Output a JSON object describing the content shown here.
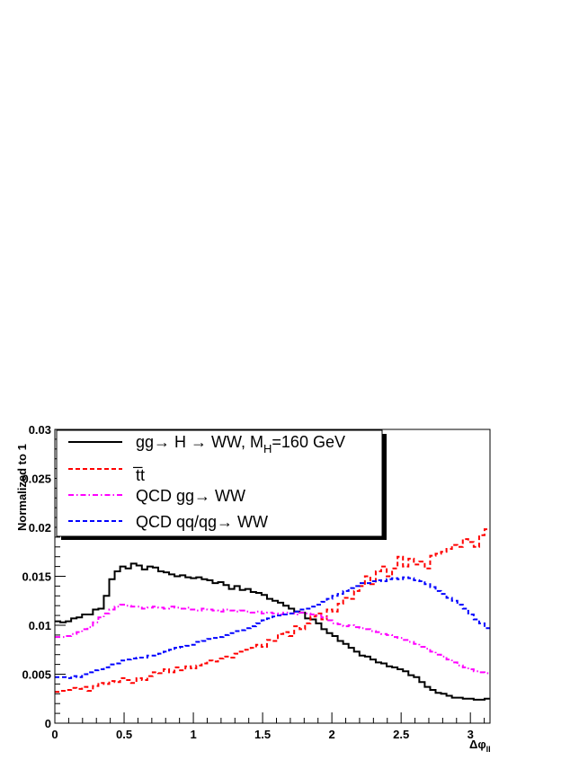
{
  "chart_data": {
    "type": "line",
    "title": "",
    "xlabel": "Δφ",
    "xlabel_subscript": "ll",
    "ylabel": "Normalized to 1",
    "xlim": [
      0,
      3.1416
    ],
    "ylim": [
      0,
      0.03
    ],
    "x_ticks": [
      "0",
      "0.5",
      "1",
      "1.5",
      "2",
      "2.5",
      "3"
    ],
    "y_ticks": [
      "0",
      "0.005",
      "0.01",
      "0.015",
      "0.02",
      "0.025",
      "0.03"
    ],
    "grid": false,
    "legend_position": "top-left",
    "series": [
      {
        "name": "gg→ H → WW, M_H=160 GeV",
        "color": "#000000",
        "dash": "solid",
        "y": [
          0.0104,
          0.0103,
          0.0104,
          0.0107,
          0.0108,
          0.0111,
          0.0111,
          0.0116,
          0.0117,
          0.013,
          0.0147,
          0.0155,
          0.016,
          0.0158,
          0.0163,
          0.0161,
          0.0157,
          0.016,
          0.0159,
          0.0155,
          0.0154,
          0.0152,
          0.015,
          0.0151,
          0.0149,
          0.0148,
          0.0149,
          0.0147,
          0.0146,
          0.0143,
          0.0144,
          0.0141,
          0.0137,
          0.014,
          0.0136,
          0.0137,
          0.0134,
          0.0133,
          0.0131,
          0.0127,
          0.0125,
          0.0123,
          0.012,
          0.0117,
          0.0114,
          0.0113,
          0.0107,
          0.0106,
          0.0102,
          0.0096,
          0.0092,
          0.0089,
          0.0084,
          0.0081,
          0.0077,
          0.0073,
          0.0069,
          0.0068,
          0.0065,
          0.0062,
          0.0061,
          0.0058,
          0.0057,
          0.0055,
          0.0053,
          0.0049,
          0.0047,
          0.0042,
          0.0037,
          0.0034,
          0.0031,
          0.003,
          0.0028,
          0.0026,
          0.0026,
          0.0025,
          0.0025,
          0.0024,
          0.0024,
          0.0025
        ]
      },
      {
        "name": "t̅t",
        "color": "#ff0000",
        "dash": "dashed",
        "y": [
          0.0032,
          0.0033,
          0.0034,
          0.0036,
          0.0035,
          0.0037,
          0.0033,
          0.0038,
          0.0041,
          0.004,
          0.0043,
          0.0042,
          0.0046,
          0.0044,
          0.0041,
          0.0046,
          0.0044,
          0.0048,
          0.0052,
          0.0051,
          0.0055,
          0.0052,
          0.0057,
          0.0054,
          0.0058,
          0.0056,
          0.0059,
          0.0061,
          0.0064,
          0.0063,
          0.0066,
          0.0068,
          0.0067,
          0.0071,
          0.0073,
          0.0075,
          0.0077,
          0.008,
          0.0078,
          0.0085,
          0.0084,
          0.0091,
          0.0093,
          0.0089,
          0.0099,
          0.0096,
          0.0102,
          0.0109,
          0.0112,
          0.0106,
          0.0116,
          0.0114,
          0.0122,
          0.0128,
          0.0127,
          0.0135,
          0.014,
          0.015,
          0.0142,
          0.0155,
          0.016,
          0.015,
          0.0158,
          0.017,
          0.016,
          0.0168,
          0.0162,
          0.0165,
          0.0158,
          0.0171,
          0.0173,
          0.0175,
          0.0178,
          0.0182,
          0.018,
          0.0188,
          0.0185,
          0.018,
          0.0192,
          0.0198
        ]
      },
      {
        "name": "QCD gg→ WW",
        "color": "#ff00ff",
        "dash": "dashdot",
        "y": [
          0.0088,
          0.0088,
          0.0089,
          0.0091,
          0.0093,
          0.0096,
          0.0098,
          0.0103,
          0.0108,
          0.0112,
          0.0116,
          0.0119,
          0.0121,
          0.012,
          0.0119,
          0.0119,
          0.0117,
          0.0118,
          0.0119,
          0.0118,
          0.0117,
          0.0119,
          0.0118,
          0.0117,
          0.0118,
          0.0116,
          0.0115,
          0.0117,
          0.0116,
          0.0115,
          0.0114,
          0.0116,
          0.0115,
          0.0114,
          0.0115,
          0.0114,
          0.0113,
          0.0114,
          0.0112,
          0.0113,
          0.0112,
          0.0111,
          0.0113,
          0.0112,
          0.0111,
          0.0113,
          0.0112,
          0.0111,
          0.011,
          0.0108,
          0.0105,
          0.0102,
          0.0101,
          0.0099,
          0.01,
          0.0098,
          0.0097,
          0.0096,
          0.0094,
          0.0093,
          0.0091,
          0.009,
          0.0088,
          0.0087,
          0.0085,
          0.0083,
          0.0081,
          0.0078,
          0.0076,
          0.0073,
          0.007,
          0.0068,
          0.0065,
          0.0062,
          0.0059,
          0.0057,
          0.0055,
          0.0053,
          0.0052,
          0.0051
        ]
      },
      {
        "name": "QCD qq/qg→ WW",
        "color": "#0000ff",
        "dash": "dashed",
        "y": [
          0.0047,
          0.0047,
          0.0046,
          0.0048,
          0.0047,
          0.005,
          0.0052,
          0.0054,
          0.0055,
          0.0057,
          0.006,
          0.0061,
          0.0064,
          0.0065,
          0.0066,
          0.0067,
          0.0067,
          0.0069,
          0.0069,
          0.0071,
          0.0073,
          0.0075,
          0.0077,
          0.0078,
          0.0079,
          0.008,
          0.0083,
          0.0084,
          0.0086,
          0.0087,
          0.0088,
          0.009,
          0.0092,
          0.0094,
          0.0095,
          0.0097,
          0.0099,
          0.0102,
          0.0105,
          0.0107,
          0.0109,
          0.011,
          0.0111,
          0.0112,
          0.0114,
          0.0116,
          0.0117,
          0.0119,
          0.0121,
          0.0124,
          0.0127,
          0.013,
          0.0132,
          0.0135,
          0.0138,
          0.014,
          0.0143,
          0.0143,
          0.0145,
          0.0146,
          0.0145,
          0.0147,
          0.0148,
          0.0147,
          0.0149,
          0.0148,
          0.0146,
          0.0145,
          0.0142,
          0.0139,
          0.0135,
          0.0132,
          0.0128,
          0.0125,
          0.0121,
          0.0117,
          0.0111,
          0.0106,
          0.0102,
          0.0097
        ]
      }
    ],
    "legend": {
      "entries": [
        {
          "text": "gg→ H → WW, M",
          "sub": "H",
          "tail": "=160 GeV"
        },
        {
          "text": "t̅t",
          "sub": "",
          "tail": ""
        },
        {
          "text": "QCD gg→ WW",
          "sub": "",
          "tail": ""
        },
        {
          "text": "QCD qq/qg→ WW",
          "sub": "",
          "tail": ""
        }
      ]
    }
  }
}
